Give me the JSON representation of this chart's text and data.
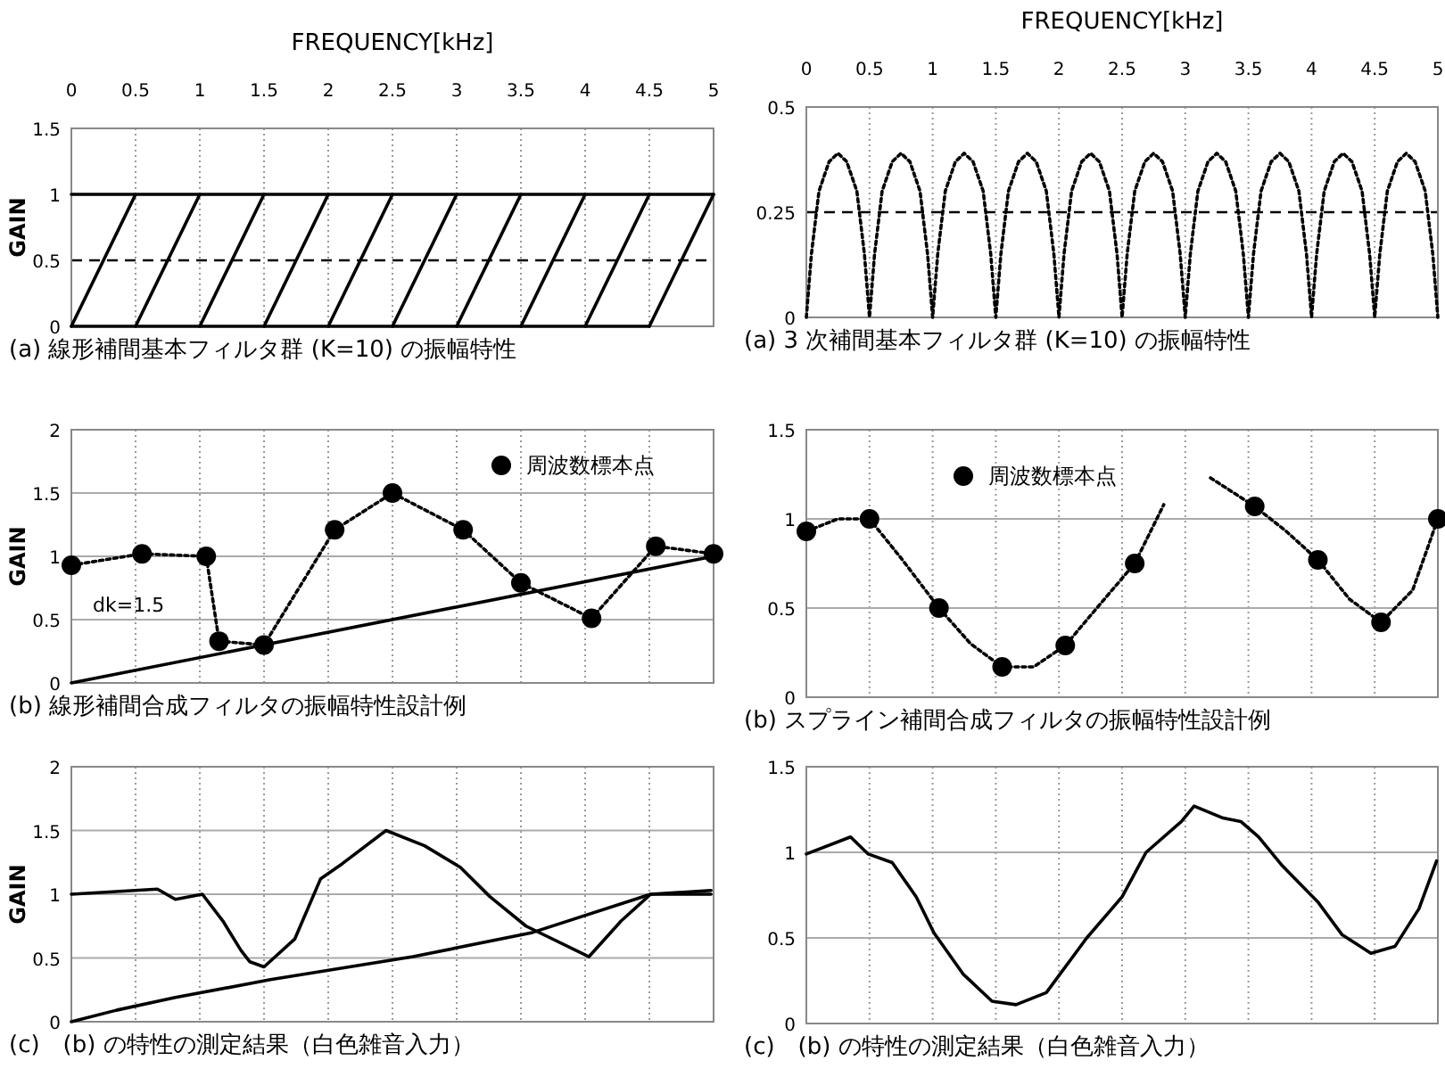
{
  "chart_data": [
    {
      "type": "line",
      "title": "(a) 線形補間基本フィルタ群 (K=10) の振幅特性",
      "xlabel": "FREQUENCY[kHz]",
      "ylabel": "GAIN",
      "xlim": [
        0,
        5
      ],
      "xticks": [
        0,
        0.5,
        1,
        1.5,
        2,
        2.5,
        3,
        3.5,
        4,
        4.5,
        5
      ],
      "ylim": [
        0,
        1.5
      ],
      "yticks": [
        0,
        0.5,
        1,
        1.5
      ],
      "grid": "x",
      "ref_lines": [
        {
          "axis": "y",
          "value": 0.5,
          "color": "#000000",
          "line_style": "dashed"
        }
      ],
      "legend": false,
      "series": [
        {
          "color": "#000000",
          "x": [
            0,
            5
          ],
          "values": [
            1,
            1
          ]
        },
        {
          "color": "#000000",
          "x": [
            0,
            4.5
          ],
          "values": [
            0,
            0
          ]
        },
        {
          "color": "#000000",
          "x": [
            0,
            0.5
          ],
          "values": [
            0,
            1
          ]
        },
        {
          "color": "#000000",
          "x": [
            0.5,
            1
          ],
          "values": [
            0,
            1
          ]
        },
        {
          "color": "#000000",
          "x": [
            1,
            1.5
          ],
          "values": [
            0,
            1
          ]
        },
        {
          "color": "#000000",
          "x": [
            1.5,
            2
          ],
          "values": [
            0,
            1
          ]
        },
        {
          "color": "#000000",
          "x": [
            2,
            2.5
          ],
          "values": [
            0,
            1
          ]
        },
        {
          "color": "#000000",
          "x": [
            2.5,
            3
          ],
          "values": [
            0,
            1
          ]
        },
        {
          "color": "#000000",
          "x": [
            3,
            3.5
          ],
          "values": [
            0,
            1
          ]
        },
        {
          "color": "#000000",
          "x": [
            3.5,
            4
          ],
          "values": [
            0,
            1
          ]
        },
        {
          "color": "#000000",
          "x": [
            4,
            4.5
          ],
          "values": [
            0,
            1
          ]
        },
        {
          "color": "#000000",
          "x": [
            4.5,
            5
          ],
          "values": [
            0,
            1
          ]
        }
      ]
    },
    {
      "type": "line",
      "title": "(a) 3 次補間基本フィルタ群 (K=10) の振幅特性",
      "xlabel": "FREQUENCY[kHz]",
      "xlim": [
        0,
        5
      ],
      "xticks": [
        0,
        0.5,
        1,
        1.5,
        2,
        2.5,
        3,
        3.5,
        4,
        4.5,
        5
      ],
      "ylim": [
        0,
        0.5
      ],
      "yticks": [
        0,
        0.25,
        0.5
      ],
      "grid": "x",
      "ref_lines": [
        {
          "axis": "y",
          "value": 0.25,
          "color": "#000000",
          "line_style": "dashed"
        }
      ],
      "legend": false,
      "series": [
        {
          "color": "#000000",
          "line_style": "dotted",
          "x": [
            0,
            0.04,
            0.1,
            0.18,
            0.25,
            0.32,
            0.4,
            0.46,
            0.5,
            0.54,
            0.6,
            0.68,
            0.75,
            0.82,
            0.9,
            0.96,
            1,
            1.04,
            1.1,
            1.18,
            1.25,
            1.32,
            1.4,
            1.46,
            1.5,
            1.54,
            1.6,
            1.68,
            1.75,
            1.82,
            1.9,
            1.96,
            2,
            2.04,
            2.1,
            2.18,
            2.25,
            2.32,
            2.4,
            2.46,
            2.5,
            2.54,
            2.6,
            2.68,
            2.75,
            2.82,
            2.9,
            2.96,
            3,
            3.04,
            3.1,
            3.18,
            3.25,
            3.32,
            3.4,
            3.46,
            3.5,
            3.54,
            3.6,
            3.68,
            3.75,
            3.82,
            3.9,
            3.96,
            4,
            4.04,
            4.1,
            4.18,
            4.25,
            4.32,
            4.4,
            4.46,
            4.5,
            4.54,
            4.6,
            4.68,
            4.75,
            4.82,
            4.9,
            4.96,
            5
          ],
          "values": [
            0,
            0.15,
            0.3,
            0.37,
            0.39,
            0.37,
            0.3,
            0.15,
            0,
            0.15,
            0.3,
            0.37,
            0.39,
            0.37,
            0.3,
            0.15,
            0,
            0.15,
            0.3,
            0.37,
            0.39,
            0.37,
            0.3,
            0.15,
            0,
            0.15,
            0.3,
            0.37,
            0.39,
            0.37,
            0.3,
            0.15,
            0,
            0.15,
            0.3,
            0.37,
            0.39,
            0.37,
            0.3,
            0.15,
            0,
            0.15,
            0.3,
            0.37,
            0.39,
            0.37,
            0.3,
            0.15,
            0,
            0.15,
            0.3,
            0.37,
            0.39,
            0.37,
            0.3,
            0.15,
            0,
            0.15,
            0.3,
            0.37,
            0.39,
            0.37,
            0.3,
            0.15,
            0,
            0.15,
            0.3,
            0.37,
            0.39,
            0.37,
            0.3,
            0.15,
            0,
            0.15,
            0.3,
            0.37,
            0.39,
            0.37,
            0.3,
            0.15,
            0
          ]
        }
      ]
    },
    {
      "type": "line",
      "title": "(b) 線形補間合成フィルタの振幅特性設計例",
      "ylabel": "GAIN",
      "xlim": [
        0,
        5
      ],
      "xticks": [
        0,
        0.5,
        1,
        1.5,
        2,
        2.5,
        3,
        3.5,
        4,
        4.5,
        5
      ],
      "ylim": [
        0,
        2
      ],
      "yticks": [
        0,
        0.5,
        1,
        1.5,
        2
      ],
      "tick_labels": "y",
      "grid": true,
      "legend": "top right",
      "annotations": [
        "dk=1.5"
      ],
      "series": [
        {
          "color": "#000000",
          "line_style": "dotted",
          "x": [
            0,
            0.55,
            1.05,
            1.15,
            1.5,
            2.05,
            2.5,
            3.05,
            3.5,
            4.05,
            4.55,
            5
          ],
          "values": [
            0.93,
            1.02,
            1.0,
            0.33,
            0.3,
            1.21,
            1.5,
            1.21,
            0.79,
            0.51,
            1.08,
            1.02
          ]
        },
        {
          "type": "scatter",
          "name": "周波数標本点",
          "marker": "circle",
          "color": "#000000",
          "x": [
            0,
            0.55,
            1.05,
            1.15,
            1.5,
            2.05,
            2.5,
            3.05,
            3.5,
            4.05,
            4.55,
            5
          ],
          "values": [
            0.93,
            1.02,
            1.0,
            0.33,
            0.3,
            1.21,
            1.5,
            1.21,
            0.79,
            0.51,
            1.08,
            1.02
          ]
        },
        {
          "color": "#000000",
          "x": [
            0,
            5
          ],
          "values": [
            0,
            1
          ]
        }
      ]
    },
    {
      "type": "line",
      "title": "(b) スプライン補間合成フィルタの振幅特性設計例",
      "xlim": [
        0,
        5
      ],
      "xticks": [
        0,
        0.5,
        1,
        1.5,
        2,
        2.5,
        3,
        3.5,
        4,
        4.5,
        5
      ],
      "ylim": [
        0,
        1.5
      ],
      "yticks": [
        0,
        0.5,
        1,
        1.5
      ],
      "tick_labels": "y",
      "grid": true,
      "legend": "top",
      "series": [
        {
          "color": "#000000",
          "line_style": "dotted",
          "x": [
            0,
            0.25,
            0.5,
            0.75,
            1.05,
            1.3,
            1.55,
            1.8,
            2.05,
            2.3,
            2.6,
            2.83,
            3.0,
            3.2,
            3.55,
            3.8,
            4.05,
            4.3,
            4.55,
            4.8,
            5
          ],
          "values": [
            0.93,
            1.0,
            1.0,
            0.78,
            0.5,
            0.3,
            0.17,
            0.17,
            0.29,
            0.5,
            0.75,
            1.08,
            null,
            1.23,
            1.07,
            0.93,
            0.77,
            0.55,
            0.42,
            0.6,
            1.0
          ]
        },
        {
          "type": "scatter",
          "name": "周波数標本点",
          "marker": "circle",
          "color": "#000000",
          "x": [
            0,
            0.5,
            1.05,
            1.55,
            2.05,
            2.6,
            3.55,
            4.05,
            4.55,
            5
          ],
          "values": [
            0.93,
            1.0,
            0.5,
            0.17,
            0.29,
            0.75,
            1.07,
            0.77,
            0.42,
            1.0
          ]
        }
      ]
    },
    {
      "type": "line",
      "title": "(c)　(b) の特性の測定結果（白色雑音入力）",
      "ylabel": "GAIN",
      "xlim": [
        0,
        5
      ],
      "xticks": [
        0,
        0.5,
        1,
        1.5,
        2,
        2.5,
        3,
        3.5,
        4,
        4.5,
        5
      ],
      "ylim": [
        0,
        2
      ],
      "yticks": [
        0,
        0.5,
        1,
        1.5,
        2
      ],
      "tick_labels": "y",
      "grid": true,
      "legend": false,
      "series": [
        {
          "color": "#000000",
          "x": [
            0,
            0.67,
            0.81,
            1.02,
            1.18,
            1.32,
            1.39,
            1.5,
            1.74,
            1.94,
            2.11,
            2.45,
            2.75,
            3.03,
            3.26,
            3.54,
            4.03,
            4.28,
            4.51,
            4.98
          ],
          "values": [
            1.0,
            1.04,
            0.96,
            1.0,
            0.79,
            0.56,
            0.47,
            0.43,
            0.65,
            1.12,
            1.24,
            1.5,
            1.38,
            1.21,
            0.98,
            0.75,
            0.51,
            0.79,
            1.0,
            1.0
          ]
        },
        {
          "color": "#000000",
          "x": [
            0,
            0.35,
            0.81,
            1.55,
            2.66,
            3.59,
            4.51,
            4.98
          ],
          "values": [
            0,
            0.09,
            0.19,
            0.33,
            0.51,
            0.7,
            1.0,
            1.03
          ]
        }
      ]
    },
    {
      "type": "line",
      "title": "(c)　(b) の特性の測定結果（白色雑音入力）",
      "xlim": [
        0,
        5
      ],
      "xticks": [
        0,
        0.5,
        1,
        1.5,
        2,
        2.5,
        3,
        3.5,
        4,
        4.5,
        5
      ],
      "ylim": [
        0,
        1.5
      ],
      "yticks": [
        0,
        0.5,
        1,
        1.5
      ],
      "tick_labels": "y",
      "grid": true,
      "legend": false,
      "series": [
        {
          "color": "#000000",
          "x": [
            0,
            0.35,
            0.49,
            0.68,
            0.87,
            1.01,
            1.24,
            1.47,
            1.66,
            1.9,
            2.22,
            2.5,
            2.69,
            2.97,
            3.07,
            3.3,
            3.44,
            3.58,
            3.77,
            4.05,
            4.24,
            4.47,
            4.66,
            4.85,
            4.99
          ],
          "values": [
            0.99,
            1.09,
            0.99,
            0.94,
            0.74,
            0.53,
            0.29,
            0.13,
            0.11,
            0.18,
            0.5,
            0.74,
            1.0,
            1.18,
            1.27,
            1.2,
            1.18,
            1.09,
            0.92,
            0.71,
            0.52,
            0.41,
            0.45,
            0.67,
            0.95
          ]
        }
      ]
    }
  ]
}
